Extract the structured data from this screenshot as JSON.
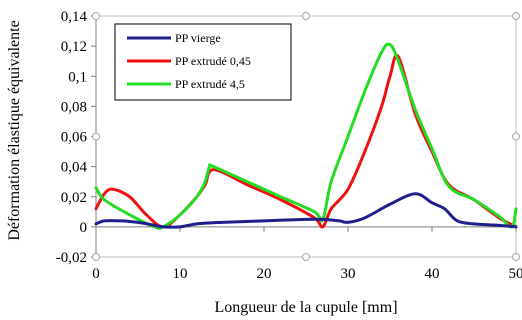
{
  "chart_data": {
    "type": "line",
    "title": "",
    "xlabel": "Longueur de la cupule [mm]",
    "ylabel": "Déformation élastique équivalente",
    "xlim": [
      0,
      50
    ],
    "ylim": [
      -0.02,
      0.14
    ],
    "x_ticks": [
      0,
      10,
      20,
      30,
      40,
      50
    ],
    "x_tick_labels": [
      "0",
      "10",
      "20",
      "30",
      "40",
      "50"
    ],
    "y_ticks": [
      -0.02,
      0,
      0.02,
      0.04,
      0.06,
      0.08,
      0.1,
      0.12,
      0.14
    ],
    "y_tick_labels": [
      "-0,02",
      "0",
      "0,02",
      "0,04",
      "0,06",
      "0,08",
      "0,1",
      "0,12",
      "0,14"
    ],
    "grid": false,
    "legend_position": "top-left",
    "series": [
      {
        "name": "PP vierge",
        "color": "#1f1f8f",
        "x": [
          0,
          1,
          3,
          5,
          7,
          8,
          10,
          12,
          15,
          20,
          25,
          27,
          29,
          30,
          32,
          35,
          38,
          40,
          41.5,
          43,
          45,
          48,
          50
        ],
        "y": [
          0.002,
          0.004,
          0.004,
          0.003,
          0.001,
          0.0,
          0.0,
          0.002,
          0.003,
          0.004,
          0.005,
          0.005,
          0.004,
          0.003,
          0.006,
          0.015,
          0.022,
          0.016,
          0.012,
          0.004,
          0.002,
          0.001,
          0.0
        ]
      },
      {
        "name": "PP extrudé 0,45",
        "color": "#ee1111",
        "x": [
          0,
          1,
          2,
          4,
          6,
          8,
          10,
          12,
          13,
          14,
          18,
          22,
          26,
          27,
          28,
          30,
          32,
          34,
          35,
          36,
          38,
          40,
          42,
          45,
          48,
          50
        ],
        "y": [
          0.012,
          0.022,
          0.025,
          0.02,
          0.008,
          0.0,
          0.008,
          0.02,
          0.028,
          0.038,
          0.028,
          0.018,
          0.006,
          0.0,
          0.012,
          0.025,
          0.05,
          0.08,
          0.1,
          0.113,
          0.075,
          0.05,
          0.028,
          0.018,
          0.006,
          0.0
        ]
      },
      {
        "name": "PP extrudé 4,5",
        "color": "#22dd22",
        "x": [
          0,
          1,
          4,
          7,
          8,
          10,
          12,
          13,
          13.5,
          14,
          18,
          22,
          26,
          27,
          28,
          30,
          32,
          34,
          35,
          36,
          38,
          40,
          42,
          45,
          48,
          49.5,
          50
        ],
        "y": [
          0.026,
          0.018,
          0.008,
          0.0,
          0.0,
          0.008,
          0.02,
          0.03,
          0.04,
          0.04,
          0.03,
          0.02,
          0.01,
          0.005,
          0.03,
          0.06,
          0.09,
          0.116,
          0.121,
          0.11,
          0.078,
          0.052,
          0.027,
          0.018,
          0.007,
          0.0,
          0.012
        ]
      }
    ]
  }
}
